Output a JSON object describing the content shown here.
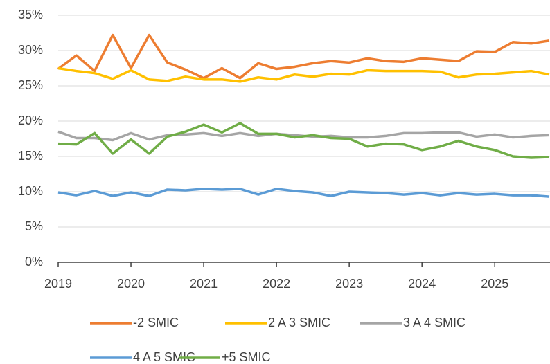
{
  "chart_data": {
    "type": "line",
    "x": [
      2019,
      2019.25,
      2019.5,
      2019.75,
      2020,
      2020.25,
      2020.5,
      2020.75,
      2021,
      2021.25,
      2021.5,
      2021.75,
      2022,
      2022.25,
      2022.5,
      2022.75,
      2023,
      2023.25,
      2023.5,
      2023.75,
      2024,
      2024.25,
      2024.5,
      2024.75,
      2025,
      2025.25,
      2025.5,
      2025.75
    ],
    "xlim": [
      2019,
      2025.75
    ],
    "xticks": [
      2019,
      2020,
      2021,
      2022,
      2023,
      2024,
      2025
    ],
    "ylim": [
      0,
      35
    ],
    "yticks": [
      {
        "value": 0,
        "label": "0%"
      },
      {
        "value": 5,
        "label": "5%"
      },
      {
        "value": 10,
        "label": "10%"
      },
      {
        "value": 15,
        "label": "15%"
      },
      {
        "value": 20,
        "label": "20%"
      },
      {
        "value": 25,
        "label": "25%"
      },
      {
        "value": 30,
        "label": "30%"
      },
      {
        "value": 35,
        "label": "35%"
      }
    ],
    "grid": true,
    "legend": "bottom",
    "series": [
      {
        "name": "-2 SMIC",
        "color": "#ed7d31",
        "values": [
          27.4,
          29.3,
          27.1,
          32.2,
          27.5,
          32.2,
          28.3,
          27.3,
          26.1,
          27.5,
          26.1,
          28.2,
          27.4,
          27.7,
          28.2,
          28.5,
          28.3,
          28.9,
          28.5,
          28.4,
          28.9,
          28.7,
          28.5,
          29.9,
          29.8,
          31.2,
          31.0,
          31.4
        ]
      },
      {
        "name": "2 A 3 SMIC",
        "color": "#ffc000",
        "values": [
          27.5,
          27.1,
          26.8,
          26.0,
          27.2,
          25.9,
          25.7,
          26.3,
          25.9,
          25.9,
          25.6,
          26.2,
          25.9,
          26.6,
          26.3,
          26.7,
          26.6,
          27.2,
          27.1,
          27.1,
          27.1,
          27.0,
          26.2,
          26.6,
          26.7,
          26.9,
          27.1,
          26.6
        ]
      },
      {
        "name": "3 A 4 SMIC",
        "color": "#a5a5a5",
        "values": [
          18.5,
          17.6,
          17.6,
          17.3,
          18.3,
          17.4,
          18.0,
          18.1,
          18.3,
          17.9,
          18.3,
          17.9,
          18.2,
          18.0,
          17.8,
          17.9,
          17.7,
          17.7,
          17.9,
          18.3,
          18.3,
          18.4,
          18.4,
          17.8,
          18.1,
          17.7,
          17.9,
          18.0
        ]
      },
      {
        "name": "4 A 5 SMIC",
        "color": "#5b9bd5",
        "values": [
          9.9,
          9.5,
          10.1,
          9.4,
          9.9,
          9.4,
          10.3,
          10.2,
          10.4,
          10.3,
          10.4,
          9.6,
          10.4,
          10.1,
          9.9,
          9.4,
          10.0,
          9.9,
          9.8,
          9.6,
          9.8,
          9.5,
          9.8,
          9.6,
          9.7,
          9.5,
          9.5,
          9.3
        ]
      },
      {
        "name": "+5 SMIC",
        "color": "#70ad47",
        "values": [
          16.8,
          16.7,
          18.3,
          15.4,
          17.4,
          15.4,
          17.8,
          18.5,
          19.5,
          18.4,
          19.7,
          18.2,
          18.2,
          17.7,
          18.0,
          17.6,
          17.5,
          16.4,
          16.8,
          16.7,
          15.9,
          16.4,
          17.2,
          16.4,
          15.9,
          15.0,
          14.8,
          14.9
        ]
      }
    ]
  }
}
